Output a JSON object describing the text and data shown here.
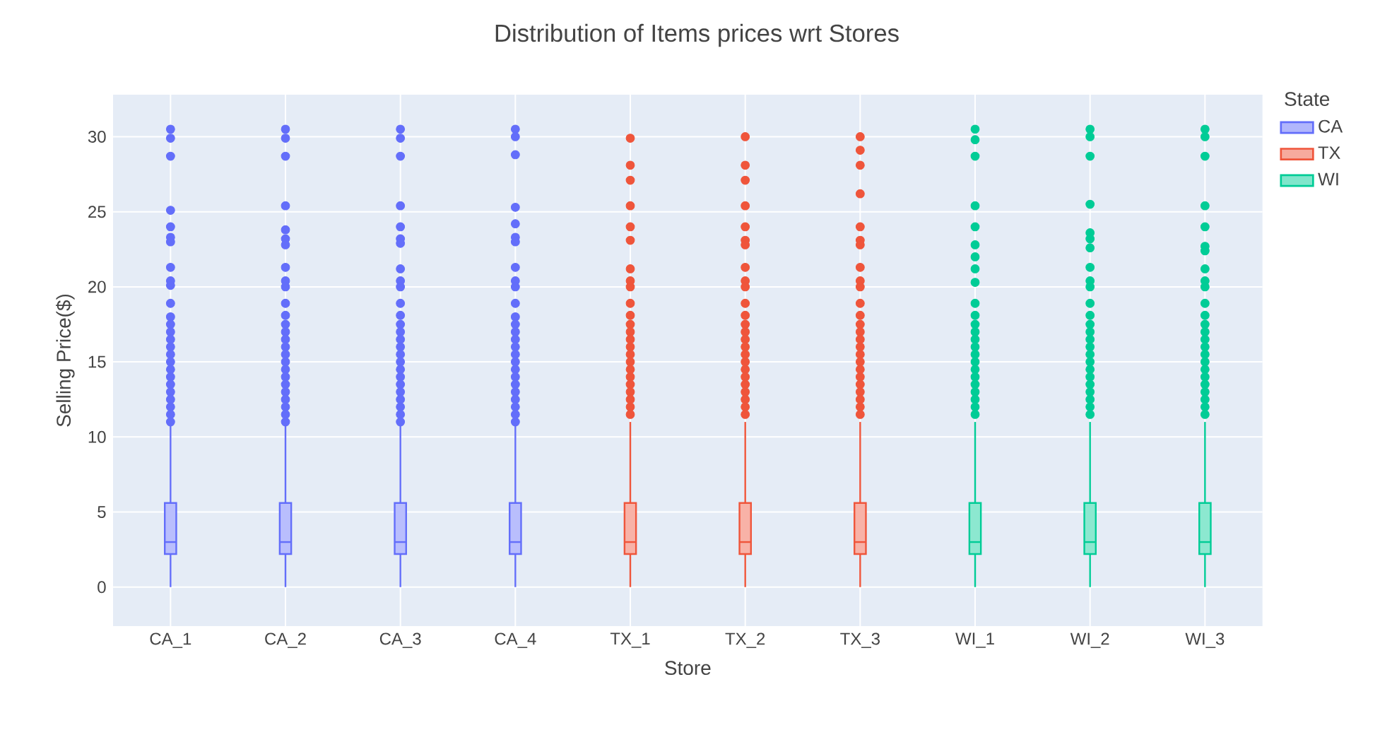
{
  "chart_data": {
    "type": "box",
    "title": "Distribution of Items prices wrt Stores",
    "xlabel": "Store",
    "ylabel": "Selling Price($)",
    "legend_title": "State",
    "categories": [
      "CA_1",
      "CA_2",
      "CA_3",
      "CA_4",
      "TX_1",
      "TX_2",
      "TX_3",
      "WI_1",
      "WI_2",
      "WI_3"
    ],
    "series": [
      {
        "name": "CA",
        "color": "#636efa",
        "boxes": [
          {
            "low": 0,
            "q1": 2.2,
            "median": 3,
            "q3": 5.6,
            "high": 10.9,
            "outliers": [
              30.5,
              29.9,
              28.7,
              25.1,
              24,
              23.3,
              23,
              21.3,
              20.4,
              20.1,
              18.9,
              18,
              17.5,
              17,
              16.5,
              16,
              15.5,
              15,
              14.5,
              14,
              13.5,
              13,
              12.5,
              12,
              11.5,
              11
            ]
          },
          {
            "low": 0,
            "q1": 2.2,
            "median": 3,
            "q3": 5.6,
            "high": 10.9,
            "outliers": [
              30.5,
              29.9,
              28.7,
              25.4,
              23.8,
              23.2,
              22.8,
              21.3,
              20.4,
              20,
              18.9,
              18.1,
              17.5,
              17,
              16.5,
              16,
              15.5,
              15,
              14.5,
              14,
              13.5,
              13,
              12.5,
              12,
              11.5,
              11
            ]
          },
          {
            "low": 0,
            "q1": 2.2,
            "median": 3,
            "q3": 5.6,
            "high": 10.9,
            "outliers": [
              30.5,
              29.9,
              28.7,
              25.4,
              24,
              23.2,
              22.9,
              21.2,
              20.4,
              20,
              18.9,
              18.1,
              17.5,
              17,
              16.5,
              16,
              15.5,
              15,
              14.5,
              14,
              13.5,
              13,
              12.5,
              12,
              11.5,
              11
            ]
          },
          {
            "low": 0,
            "q1": 2.2,
            "median": 3,
            "q3": 5.6,
            "high": 10.9,
            "outliers": [
              30.5,
              30,
              28.8,
              25.3,
              24.2,
              23.3,
              23,
              21.3,
              20.4,
              20,
              18.9,
              18,
              17.5,
              17,
              16.5,
              16,
              15.5,
              15,
              14.5,
              14,
              13.5,
              13,
              12.5,
              12,
              11.5,
              11
            ]
          },
          null,
          null,
          null,
          null,
          null,
          null
        ]
      },
      {
        "name": "TX",
        "color": "#ef553b",
        "boxes": [
          null,
          null,
          null,
          null,
          {
            "low": 0,
            "q1": 2.2,
            "median": 3,
            "q3": 5.6,
            "high": 11,
            "outliers": [
              29.9,
              28.1,
              27.1,
              25.4,
              24,
              23.1,
              21.2,
              20.4,
              20,
              18.9,
              18.1,
              17.5,
              17,
              16.5,
              16,
              15.5,
              15,
              14.5,
              14,
              13.5,
              13,
              12.5,
              12,
              11.5
            ]
          },
          {
            "low": 0,
            "q1": 2.2,
            "median": 3,
            "q3": 5.6,
            "high": 11,
            "outliers": [
              30,
              28.1,
              27.1,
              25.4,
              24,
              23.1,
              22.8,
              21.3,
              20.4,
              20,
              18.9,
              18.1,
              17.5,
              17,
              16.5,
              16,
              15.5,
              15,
              14.5,
              14,
              13.5,
              13,
              12.5,
              12,
              11.5
            ]
          },
          {
            "low": 0,
            "q1": 2.2,
            "median": 3,
            "q3": 5.6,
            "high": 11,
            "outliers": [
              30,
              29.1,
              28.1,
              26.2,
              24,
              23.1,
              22.8,
              21.3,
              20.4,
              20,
              18.9,
              18.1,
              17.5,
              17,
              16.5,
              16,
              15.5,
              15,
              14.5,
              14,
              13.5,
              13,
              12.5,
              12,
              11.5
            ]
          },
          null,
          null,
          null
        ]
      },
      {
        "name": "WI",
        "color": "#00cc96",
        "boxes": [
          null,
          null,
          null,
          null,
          null,
          null,
          null,
          {
            "low": 0,
            "q1": 2.2,
            "median": 3,
            "q3": 5.6,
            "high": 11,
            "outliers": [
              30.5,
              29.8,
              28.7,
              25.4,
              24,
              22.8,
              22,
              21.2,
              20.3,
              18.9,
              18.1,
              17.5,
              17,
              16.5,
              16,
              15.5,
              15,
              14.5,
              14,
              13.5,
              13,
              12.5,
              12,
              11.5
            ]
          },
          {
            "low": 0,
            "q1": 2.2,
            "median": 3,
            "q3": 5.6,
            "high": 11,
            "outliers": [
              30.5,
              30,
              28.7,
              25.5,
              23.6,
              23.2,
              22.6,
              21.3,
              20.4,
              20,
              18.9,
              18.1,
              17.5,
              17,
              16.5,
              16,
              15.5,
              15,
              14.5,
              14,
              13.5,
              13,
              12.5,
              12,
              11.5
            ]
          },
          {
            "low": 0,
            "q1": 2.2,
            "median": 3,
            "q3": 5.6,
            "high": 11,
            "outliers": [
              30.5,
              30,
              28.7,
              25.4,
              24,
              22.7,
              22.4,
              21.2,
              20.4,
              20,
              18.9,
              18.1,
              17.5,
              17,
              16.5,
              16,
              15.5,
              15,
              14.5,
              14,
              13.5,
              13,
              12.5,
              12,
              11.5
            ]
          }
        ]
      }
    ],
    "ylim": [
      -2.6,
      32.8
    ],
    "yticks": [
      0,
      5,
      10,
      15,
      20,
      25,
      30
    ],
    "grid": true,
    "legend": "top right"
  }
}
